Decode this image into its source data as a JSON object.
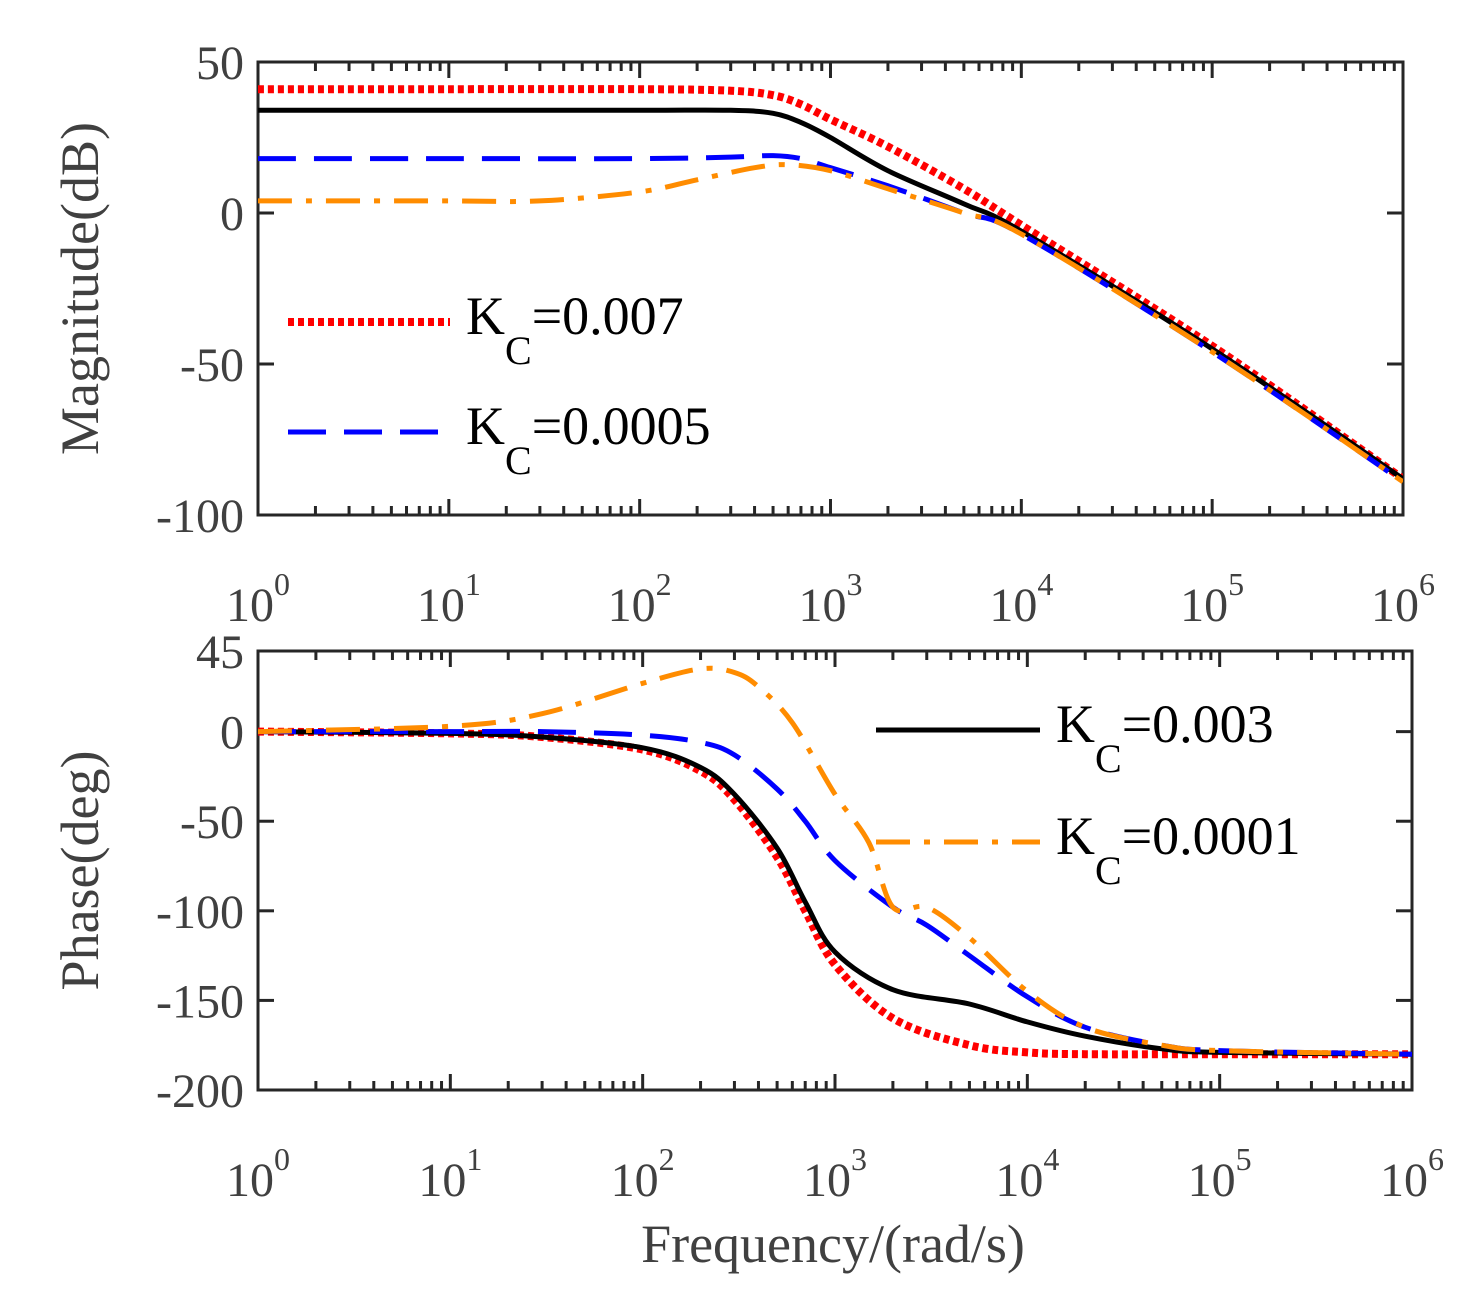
{
  "chart_data": [
    {
      "type": "line",
      "panel": "magnitude",
      "xscale": "log",
      "xlim": [
        1,
        1000000
      ],
      "ylim": [
        -100,
        50
      ],
      "ylabel": "Magnitude(dB)",
      "xlabel": "",
      "yticks": [
        "50",
        "0",
        "-50",
        "-100"
      ],
      "xticks": [
        {
          "base": "10",
          "exp": "0"
        },
        {
          "base": "10",
          "exp": "1"
        },
        {
          "base": "10",
          "exp": "2"
        },
        {
          "base": "10",
          "exp": "3"
        },
        {
          "base": "10",
          "exp": "4"
        },
        {
          "base": "10",
          "exp": "5"
        },
        {
          "base": "10",
          "exp": "6"
        }
      ],
      "legend": [
        {
          "series": 0,
          "label": "K",
          "sub": "C",
          "value": "=0.007"
        },
        {
          "series": 2,
          "label": "K",
          "sub": "C",
          "value": "=0.0005"
        }
      ],
      "series": [
        {
          "name": "KC=0.007",
          "color": "#ff0000",
          "style": "dotted",
          "x": [
            1,
            10,
            100,
            300,
            500,
            700,
            1000,
            2000,
            5000,
            10000,
            100000,
            1000000
          ],
          "y": [
            41,
            41,
            41,
            40.5,
            39,
            36,
            31,
            22,
            8,
            -4,
            -44,
            -88
          ]
        },
        {
          "name": "KC=0.003",
          "color": "#000000",
          "style": "solid",
          "x": [
            1,
            10,
            100,
            300,
            500,
            700,
            1000,
            2000,
            5000,
            10000,
            100000,
            1000000
          ],
          "y": [
            34,
            34,
            34,
            34,
            33,
            30,
            25,
            14,
            3,
            -6,
            -45,
            -88
          ]
        },
        {
          "name": "KC=0.0005",
          "color": "#0000ff",
          "style": "dashed",
          "x": [
            1,
            10,
            100,
            300,
            500,
            700,
            1000,
            2000,
            5000,
            10000,
            100000,
            1000000
          ],
          "y": [
            18,
            18,
            18,
            18.5,
            19,
            18,
            15,
            9,
            0,
            -7,
            -46,
            -89
          ]
        },
        {
          "name": "KC=0.0001",
          "color": "#ff8c00",
          "style": "dashdot",
          "x": [
            1,
            10,
            30,
            100,
            200,
            400,
            600,
            1000,
            2000,
            5000,
            10000,
            100000,
            1000000
          ],
          "y": [
            4,
            4,
            4,
            7,
            11,
            15,
            16,
            14,
            8,
            0,
            -7,
            -46,
            -89
          ]
        }
      ]
    },
    {
      "type": "line",
      "panel": "phase",
      "xscale": "log",
      "xlim": [
        1,
        1000000
      ],
      "ylim": [
        -200,
        45
      ],
      "ylabel": "Phase(deg)",
      "xlabel": "Frequency/(rad/s)",
      "yticks": [
        "45",
        "0",
        "-50",
        "-100",
        "-150",
        "-200"
      ],
      "xticks": [
        {
          "base": "10",
          "exp": "0"
        },
        {
          "base": "10",
          "exp": "1"
        },
        {
          "base": "10",
          "exp": "2"
        },
        {
          "base": "10",
          "exp": "3"
        },
        {
          "base": "10",
          "exp": "4"
        },
        {
          "base": "10",
          "exp": "5"
        },
        {
          "base": "10",
          "exp": "6"
        }
      ],
      "legend": [
        {
          "series": 1,
          "label": "K",
          "sub": "C",
          "value": "=0.003"
        },
        {
          "series": 3,
          "label": "K",
          "sub": "C",
          "value": "=0.0001"
        }
      ],
      "series": [
        {
          "name": "KC=0.007",
          "color": "#ff0000",
          "style": "dotted",
          "x": [
            1,
            10,
            30,
            100,
            200,
            300,
            500,
            700,
            1000,
            2000,
            5000,
            10000,
            20000,
            100000,
            1000000
          ],
          "y": [
            0,
            -1,
            -3,
            -10,
            -22,
            -38,
            -70,
            -100,
            -130,
            -160,
            -175,
            -179,
            -180,
            -180,
            -180
          ]
        },
        {
          "name": "KC=0.003",
          "color": "#000000",
          "style": "solid",
          "x": [
            1,
            10,
            30,
            100,
            200,
            300,
            500,
            700,
            1000,
            2000,
            5000,
            10000,
            20000,
            50000,
            100000,
            1000000
          ],
          "y": [
            0,
            -1,
            -3,
            -9,
            -20,
            -35,
            -65,
            -95,
            -123,
            -144,
            -152,
            -162,
            -170,
            -177,
            -179,
            -180
          ]
        },
        {
          "name": "KC=0.0005",
          "color": "#0000ff",
          "style": "dashed",
          "x": [
            1,
            10,
            30,
            100,
            200,
            300,
            500,
            700,
            1000,
            2000,
            3000,
            5000,
            10000,
            20000,
            50000,
            100000,
            1000000
          ],
          "y": [
            0,
            0,
            0,
            -2,
            -6,
            -13,
            -32,
            -50,
            -72,
            -98,
            -108,
            -125,
            -148,
            -165,
            -175,
            -178,
            -180
          ]
        },
        {
          "name": "KC=0.0001",
          "color": "#ff8c00",
          "style": "dashdot",
          "x": [
            1,
            10,
            30,
            100,
            200,
            300,
            400,
            600,
            1000,
            1500,
            2000,
            3000,
            5000,
            10000,
            20000,
            50000,
            100000,
            1000000
          ],
          "y": [
            0,
            3,
            10,
            27,
            35,
            33,
            25,
            5,
            -35,
            -62,
            -98,
            -98,
            -115,
            -145,
            -165,
            -175,
            -178,
            -180
          ]
        }
      ]
    }
  ]
}
